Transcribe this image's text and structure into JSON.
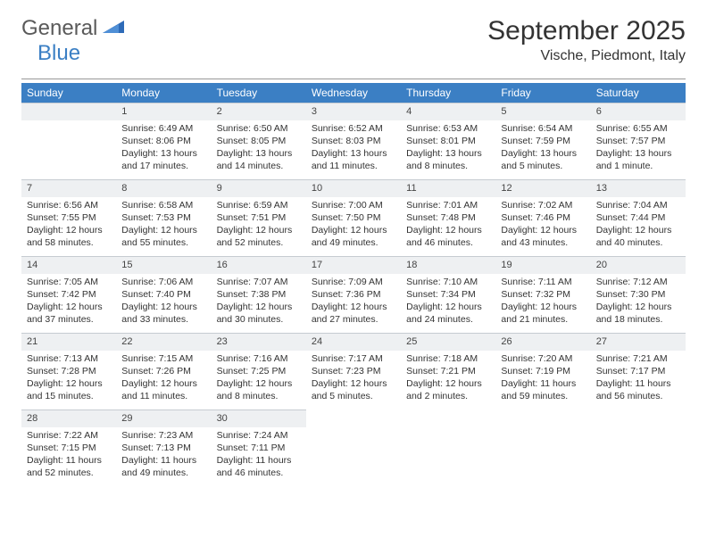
{
  "logo": {
    "text1": "General",
    "text2": "Blue"
  },
  "title": "September 2025",
  "location": "Vische, Piedmont, Italy",
  "header_bg": "#3b7fc4",
  "daynum_bg": "#eef0f2",
  "weekdays": [
    "Sunday",
    "Monday",
    "Tuesday",
    "Wednesday",
    "Thursday",
    "Friday",
    "Saturday"
  ],
  "leading_blanks": 1,
  "days": [
    {
      "n": 1,
      "sunrise": "6:49 AM",
      "sunset": "8:06 PM",
      "daylight": "13 hours and 17 minutes."
    },
    {
      "n": 2,
      "sunrise": "6:50 AM",
      "sunset": "8:05 PM",
      "daylight": "13 hours and 14 minutes."
    },
    {
      "n": 3,
      "sunrise": "6:52 AM",
      "sunset": "8:03 PM",
      "daylight": "13 hours and 11 minutes."
    },
    {
      "n": 4,
      "sunrise": "6:53 AM",
      "sunset": "8:01 PM",
      "daylight": "13 hours and 8 minutes."
    },
    {
      "n": 5,
      "sunrise": "6:54 AM",
      "sunset": "7:59 PM",
      "daylight": "13 hours and 5 minutes."
    },
    {
      "n": 6,
      "sunrise": "6:55 AM",
      "sunset": "7:57 PM",
      "daylight": "13 hours and 1 minute."
    },
    {
      "n": 7,
      "sunrise": "6:56 AM",
      "sunset": "7:55 PM",
      "daylight": "12 hours and 58 minutes."
    },
    {
      "n": 8,
      "sunrise": "6:58 AM",
      "sunset": "7:53 PM",
      "daylight": "12 hours and 55 minutes."
    },
    {
      "n": 9,
      "sunrise": "6:59 AM",
      "sunset": "7:51 PM",
      "daylight": "12 hours and 52 minutes."
    },
    {
      "n": 10,
      "sunrise": "7:00 AM",
      "sunset": "7:50 PM",
      "daylight": "12 hours and 49 minutes."
    },
    {
      "n": 11,
      "sunrise": "7:01 AM",
      "sunset": "7:48 PM",
      "daylight": "12 hours and 46 minutes."
    },
    {
      "n": 12,
      "sunrise": "7:02 AM",
      "sunset": "7:46 PM",
      "daylight": "12 hours and 43 minutes."
    },
    {
      "n": 13,
      "sunrise": "7:04 AM",
      "sunset": "7:44 PM",
      "daylight": "12 hours and 40 minutes."
    },
    {
      "n": 14,
      "sunrise": "7:05 AM",
      "sunset": "7:42 PM",
      "daylight": "12 hours and 37 minutes."
    },
    {
      "n": 15,
      "sunrise": "7:06 AM",
      "sunset": "7:40 PM",
      "daylight": "12 hours and 33 minutes."
    },
    {
      "n": 16,
      "sunrise": "7:07 AM",
      "sunset": "7:38 PM",
      "daylight": "12 hours and 30 minutes."
    },
    {
      "n": 17,
      "sunrise": "7:09 AM",
      "sunset": "7:36 PM",
      "daylight": "12 hours and 27 minutes."
    },
    {
      "n": 18,
      "sunrise": "7:10 AM",
      "sunset": "7:34 PM",
      "daylight": "12 hours and 24 minutes."
    },
    {
      "n": 19,
      "sunrise": "7:11 AM",
      "sunset": "7:32 PM",
      "daylight": "12 hours and 21 minutes."
    },
    {
      "n": 20,
      "sunrise": "7:12 AM",
      "sunset": "7:30 PM",
      "daylight": "12 hours and 18 minutes."
    },
    {
      "n": 21,
      "sunrise": "7:13 AM",
      "sunset": "7:28 PM",
      "daylight": "12 hours and 15 minutes."
    },
    {
      "n": 22,
      "sunrise": "7:15 AM",
      "sunset": "7:26 PM",
      "daylight": "12 hours and 11 minutes."
    },
    {
      "n": 23,
      "sunrise": "7:16 AM",
      "sunset": "7:25 PM",
      "daylight": "12 hours and 8 minutes."
    },
    {
      "n": 24,
      "sunrise": "7:17 AM",
      "sunset": "7:23 PM",
      "daylight": "12 hours and 5 minutes."
    },
    {
      "n": 25,
      "sunrise": "7:18 AM",
      "sunset": "7:21 PM",
      "daylight": "12 hours and 2 minutes."
    },
    {
      "n": 26,
      "sunrise": "7:20 AM",
      "sunset": "7:19 PM",
      "daylight": "11 hours and 59 minutes."
    },
    {
      "n": 27,
      "sunrise": "7:21 AM",
      "sunset": "7:17 PM",
      "daylight": "11 hours and 56 minutes."
    },
    {
      "n": 28,
      "sunrise": "7:22 AM",
      "sunset": "7:15 PM",
      "daylight": "11 hours and 52 minutes."
    },
    {
      "n": 29,
      "sunrise": "7:23 AM",
      "sunset": "7:13 PM",
      "daylight": "11 hours and 49 minutes."
    },
    {
      "n": 30,
      "sunrise": "7:24 AM",
      "sunset": "7:11 PM",
      "daylight": "11 hours and 46 minutes."
    }
  ],
  "labels": {
    "sunrise": "Sunrise:",
    "sunset": "Sunset:",
    "daylight": "Daylight:"
  }
}
